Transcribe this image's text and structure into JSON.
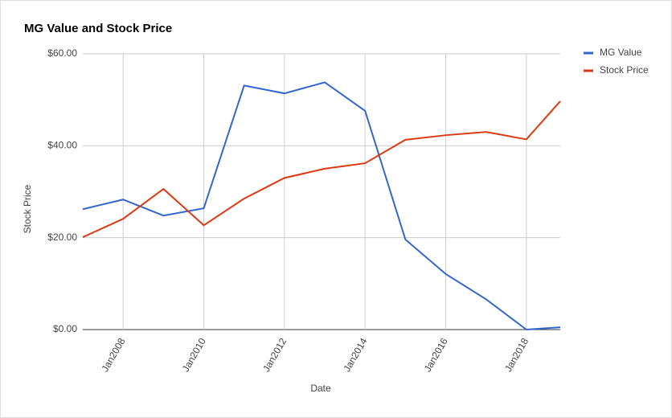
{
  "chart_data": {
    "type": "line",
    "title": "MG Value and Stock Price",
    "x_label": "Date",
    "y_label": "Stock Price",
    "x": [
      2007,
      2008,
      2009,
      2010,
      2011,
      2012,
      2013,
      2014,
      2015,
      2016,
      2017,
      2018,
      2018.84
    ],
    "series": [
      {
        "name": "MG Value",
        "color": "#3366cc",
        "values": [
          26.2,
          28.3,
          24.8,
          26.4,
          53.1,
          51.4,
          53.8,
          47.6,
          19.6,
          12.1,
          6.6,
          0,
          0.5
        ]
      },
      {
        "name": "Stock Price",
        "color": "#dc3912",
        "values": [
          20.1,
          24.1,
          30.6,
          22.7,
          28.5,
          33.0,
          35.0,
          36.2,
          41.3,
          42.3,
          43.0,
          41.4,
          49.7
        ]
      }
    ],
    "xlim": [
      2007,
      2018.84
    ],
    "xticks": [
      {
        "value": 2008,
        "label": "Jan2008"
      },
      {
        "value": 2010,
        "label": "Jan2010"
      },
      {
        "value": 2012,
        "label": "Jan2012"
      },
      {
        "value": 2014,
        "label": "Jan2014"
      },
      {
        "value": 2016,
        "label": "Jan2016"
      },
      {
        "value": 2018,
        "label": "Jan2018"
      }
    ],
    "ylim": [
      0,
      60
    ],
    "yticks": [
      {
        "value": 0,
        "label": "$0.00"
      },
      {
        "value": 20,
        "label": "$20.00"
      },
      {
        "value": 40,
        "label": "$40.00"
      },
      {
        "value": 60,
        "label": "$60.00"
      }
    ],
    "grid": true,
    "legend": "right"
  }
}
